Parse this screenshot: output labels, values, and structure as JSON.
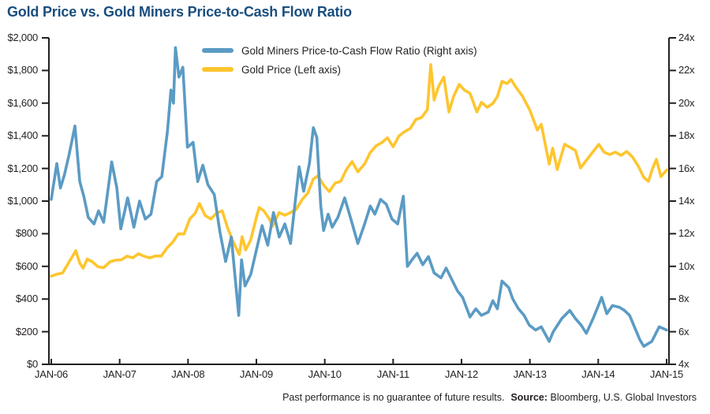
{
  "title": "Gold Price vs. Gold Miners Price-to-Cash Flow Ratio",
  "colors": {
    "title": "#1A4E7E",
    "axis": "#231F20",
    "text": "#231F20",
    "miners": "#5B9BC4",
    "gold": "#FEC52E",
    "background": "#FFFFFF"
  },
  "legend": [
    {
      "label": "Gold Miners Price-to-Cash Flow Ratio (Right axis)",
      "color_key": "miners"
    },
    {
      "label": "Gold Price (Left axis)",
      "color_key": "gold"
    }
  ],
  "footer": {
    "disclaimer": "Past performance is no guarantee of future results.",
    "source_label": "Source:",
    "source_text": "Bloomberg, U.S. Global Investors"
  },
  "chart_data": {
    "type": "line",
    "title": "Gold Price vs. Gold Miners Price-to-Cash Flow Ratio",
    "x_unit": "months since Jan-2006",
    "x_range": [
      0,
      108
    ],
    "x_ticks": {
      "positions": [
        0,
        12,
        24,
        36,
        48,
        60,
        72,
        84,
        96,
        108
      ],
      "labels": [
        "JAN-06",
        "JAN-07",
        "JAN-08",
        "JAN-09",
        "JAN-10",
        "JAN-11",
        "JAN-12",
        "JAN-13",
        "JAN-14",
        "JAN-15"
      ]
    },
    "left_axis": {
      "title": "Gold Price (USD)",
      "range": [
        0,
        2000
      ],
      "tick_values": [
        2000,
        1800,
        1600,
        1400,
        1200,
        1000,
        800,
        600,
        400,
        200,
        0
      ],
      "tick_labels": [
        "$2,000",
        "$1,800",
        "$1,600",
        "$1,400",
        "$1,200",
        "$1,000",
        "$800",
        "$600",
        "$400",
        "$200",
        "$0"
      ]
    },
    "right_axis": {
      "title": "Price-to-Cash Flow Ratio",
      "range": [
        4,
        24
      ],
      "tick_values": [
        24,
        22,
        20,
        18,
        16,
        14,
        12,
        10,
        8,
        6,
        4
      ],
      "tick_labels": [
        "24x",
        "22x",
        "20x",
        "18x",
        "16x",
        "14x",
        "12x",
        "10x",
        "8x",
        "6x",
        "4x"
      ]
    },
    "grid": false,
    "legend_position": "top-center-inside",
    "series": [
      {
        "name": "Gold Miners Price-to-Cash Flow Ratio (Right axis)",
        "axis": "right",
        "color_key": "miners",
        "points": [
          [
            0,
            14.1
          ],
          [
            0.97,
            16.3
          ],
          [
            1.6,
            14.8
          ],
          [
            2.3,
            15.6
          ],
          [
            3.1,
            16.8
          ],
          [
            4.15,
            18.6
          ],
          [
            5,
            15.2
          ],
          [
            5.7,
            14.3
          ],
          [
            6.5,
            13.0
          ],
          [
            7.5,
            12.6
          ],
          [
            8.3,
            13.4
          ],
          [
            9.2,
            12.7
          ],
          [
            10.6,
            16.4
          ],
          [
            11.5,
            14.8
          ],
          [
            12.2,
            12.3
          ],
          [
            13.4,
            14.2
          ],
          [
            14.5,
            12.4
          ],
          [
            15.5,
            14.0
          ],
          [
            16.5,
            12.9
          ],
          [
            17.5,
            13.2
          ],
          [
            18.5,
            15.2
          ],
          [
            19.4,
            15.5
          ],
          [
            20.4,
            18.3
          ],
          [
            21,
            20.8
          ],
          [
            21.45,
            20.0
          ],
          [
            21.8,
            23.4
          ],
          [
            22.4,
            21.6
          ],
          [
            23.1,
            22.2
          ],
          [
            23.9,
            17.3
          ],
          [
            24.9,
            17.6
          ],
          [
            25.7,
            15.2
          ],
          [
            26.6,
            16.2
          ],
          [
            27.5,
            15.0
          ],
          [
            28.6,
            14.4
          ],
          [
            29.6,
            12.1
          ],
          [
            30.6,
            10.3
          ],
          [
            31.6,
            11.8
          ],
          [
            32.9,
            7.0
          ],
          [
            33.4,
            10.4
          ],
          [
            34,
            8.8
          ],
          [
            35,
            9.5
          ],
          [
            36,
            11.0
          ],
          [
            37,
            12.5
          ],
          [
            38,
            11.3
          ],
          [
            39,
            13.3
          ],
          [
            40,
            11.8
          ],
          [
            41,
            12.6
          ],
          [
            42,
            11.4
          ],
          [
            43.5,
            16.1
          ],
          [
            44.3,
            14.6
          ],
          [
            45.3,
            16.3
          ],
          [
            46,
            18.5
          ],
          [
            46.6,
            17.9
          ],
          [
            47.3,
            13.7
          ],
          [
            47.8,
            12.2
          ],
          [
            48.6,
            13.2
          ],
          [
            49.3,
            12.4
          ],
          [
            50.3,
            13.0
          ],
          [
            51.5,
            14.2
          ],
          [
            52.5,
            13.0
          ],
          [
            53.8,
            11.4
          ],
          [
            55,
            12.6
          ],
          [
            56,
            13.7
          ],
          [
            56.8,
            13.2
          ],
          [
            57.8,
            14.1
          ],
          [
            58.8,
            13.8
          ],
          [
            59.8,
            12.9
          ],
          [
            60.8,
            12.6
          ],
          [
            61.8,
            14.3
          ],
          [
            62.5,
            10.0
          ],
          [
            63.3,
            10.4
          ],
          [
            64.2,
            10.8
          ],
          [
            65.2,
            10.1
          ],
          [
            66.2,
            10.6
          ],
          [
            67.2,
            9.6
          ],
          [
            68.4,
            9.3
          ],
          [
            69.3,
            9.9
          ],
          [
            70.3,
            9.2
          ],
          [
            71.3,
            8.5
          ],
          [
            72.2,
            8.1
          ],
          [
            73.5,
            6.9
          ],
          [
            74.5,
            7.4
          ],
          [
            75.5,
            7.0
          ],
          [
            76.7,
            7.2
          ],
          [
            77.5,
            7.9
          ],
          [
            78.3,
            7.4
          ],
          [
            79.1,
            9.1
          ],
          [
            80.3,
            8.7
          ],
          [
            81,
            8.0
          ],
          [
            82,
            7.4
          ],
          [
            83,
            7.0
          ],
          [
            83.9,
            6.4
          ],
          [
            85,
            6.1
          ],
          [
            86,
            6.3
          ],
          [
            87.4,
            5.4
          ],
          [
            88.1,
            6.0
          ],
          [
            89.6,
            6.8
          ],
          [
            91,
            7.3
          ],
          [
            92,
            6.8
          ],
          [
            93,
            6.4
          ],
          [
            93.9,
            5.9
          ],
          [
            95.1,
            6.8
          ],
          [
            96.6,
            8.1
          ],
          [
            97.5,
            7.1
          ],
          [
            98.5,
            7.6
          ],
          [
            99.7,
            7.5
          ],
          [
            100.6,
            7.3
          ],
          [
            101.5,
            7.0
          ],
          [
            103.3,
            5.5
          ],
          [
            104,
            5.1
          ],
          [
            105.4,
            5.4
          ],
          [
            106.7,
            6.3
          ],
          [
            108,
            6.1
          ]
        ]
      },
      {
        "name": "Gold Price (Left axis)",
        "axis": "left",
        "color_key": "gold",
        "points": [
          [
            0,
            540
          ],
          [
            1,
            552
          ],
          [
            2,
            560
          ],
          [
            3,
            620
          ],
          [
            4.3,
            696
          ],
          [
            5,
            620
          ],
          [
            5.6,
            589
          ],
          [
            6.3,
            645
          ],
          [
            7.2,
            628
          ],
          [
            8.2,
            598
          ],
          [
            9.2,
            592
          ],
          [
            10.3,
            628
          ],
          [
            11.3,
            638
          ],
          [
            12.3,
            640
          ],
          [
            13.3,
            663
          ],
          [
            14.3,
            652
          ],
          [
            15.3,
            678
          ],
          [
            16.3,
            662
          ],
          [
            17.3,
            652
          ],
          [
            18.3,
            664
          ],
          [
            19.3,
            663
          ],
          [
            20.3,
            712
          ],
          [
            21.3,
            748
          ],
          [
            22.3,
            800
          ],
          [
            23.3,
            798
          ],
          [
            24.3,
            890
          ],
          [
            25.3,
            928
          ],
          [
            26,
            985
          ],
          [
            27,
            912
          ],
          [
            28,
            890
          ],
          [
            29,
            925
          ],
          [
            30,
            940
          ],
          [
            31,
            830
          ],
          [
            32,
            745
          ],
          [
            33,
            672
          ],
          [
            33.5,
            782
          ],
          [
            34.1,
            700
          ],
          [
            35,
            762
          ],
          [
            36,
            900
          ],
          [
            36.5,
            961
          ],
          [
            37.3,
            940
          ],
          [
            38.3,
            890
          ],
          [
            38.8,
            845
          ],
          [
            40,
            930
          ],
          [
            41,
            913
          ],
          [
            42,
            930
          ],
          [
            43,
            950
          ],
          [
            44,
            1008
          ],
          [
            45,
            1048
          ],
          [
            46,
            1135
          ],
          [
            46.8,
            1155
          ],
          [
            47.8,
            1098
          ],
          [
            48.8,
            1058
          ],
          [
            49.8,
            1110
          ],
          [
            50.8,
            1121
          ],
          [
            51.8,
            1193
          ],
          [
            52.8,
            1242
          ],
          [
            53.8,
            1179
          ],
          [
            55,
            1228
          ],
          [
            56,
            1298
          ],
          [
            57,
            1338
          ],
          [
            58,
            1358
          ],
          [
            59,
            1388
          ],
          [
            60,
            1333
          ],
          [
            61,
            1398
          ],
          [
            62,
            1425
          ],
          [
            63,
            1445
          ],
          [
            64,
            1500
          ],
          [
            65,
            1512
          ],
          [
            66,
            1560
          ],
          [
            66.6,
            1836
          ],
          [
            67.2,
            1619
          ],
          [
            68,
            1705
          ],
          [
            68.9,
            1759
          ],
          [
            69.8,
            1546
          ],
          [
            70.6,
            1640
          ],
          [
            71.6,
            1715
          ],
          [
            72.5,
            1680
          ],
          [
            73.5,
            1660
          ],
          [
            74.7,
            1546
          ],
          [
            75.5,
            1605
          ],
          [
            76.5,
            1575
          ],
          [
            77.5,
            1598
          ],
          [
            78.3,
            1640
          ],
          [
            79.1,
            1734
          ],
          [
            80,
            1720
          ],
          [
            80.7,
            1745
          ],
          [
            81.5,
            1700
          ],
          [
            82.7,
            1643
          ],
          [
            84,
            1556
          ],
          [
            85.3,
            1435
          ],
          [
            86,
            1470
          ],
          [
            87.4,
            1227
          ],
          [
            88,
            1324
          ],
          [
            88.8,
            1193
          ],
          [
            90.1,
            1348
          ],
          [
            91,
            1330
          ],
          [
            92,
            1310
          ],
          [
            92.9,
            1203
          ],
          [
            94.8,
            1290
          ],
          [
            96.1,
            1348
          ],
          [
            97,
            1300
          ],
          [
            98,
            1285
          ],
          [
            99,
            1300
          ],
          [
            100,
            1280
          ],
          [
            101,
            1304
          ],
          [
            102,
            1270
          ],
          [
            103,
            1216
          ],
          [
            104,
            1145
          ],
          [
            104.8,
            1121
          ],
          [
            105.5,
            1195
          ],
          [
            106.2,
            1256
          ],
          [
            107,
            1150
          ],
          [
            108,
            1190
          ]
        ]
      }
    ]
  }
}
